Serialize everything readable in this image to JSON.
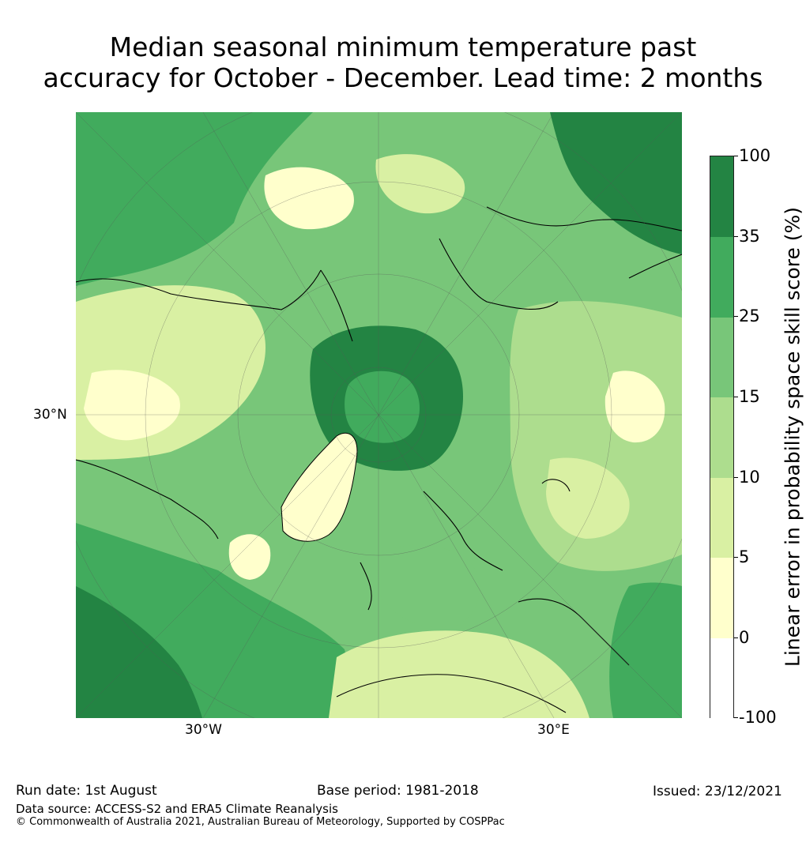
{
  "title": {
    "line1": "Median seasonal minimum temperature past",
    "line2": "accuracy for October - December. Lead time: 2 months"
  },
  "map": {
    "lat_labels": [
      "30°N"
    ],
    "lon_labels": [
      "30°W",
      "30°E"
    ],
    "palette": {
      "darkest": "#238443",
      "dark": "#41ab5d",
      "mid": "#78c679",
      "light": "#addd8e",
      "pale": "#d9f0a3",
      "cream": "#ffffcc",
      "white": "#ffffff",
      "coast": "#000000"
    }
  },
  "colorbar": {
    "label": "Linear error in probability space skill score (%)",
    "ticks": [
      "100",
      "35",
      "25",
      "15",
      "10",
      "5",
      "0",
      "-100"
    ],
    "colors": [
      "#238443",
      "#41ab5d",
      "#78c679",
      "#addd8e",
      "#d9f0a3",
      "#ffffcc",
      "#ffffff"
    ]
  },
  "footer": {
    "run_date": "Run date: 1st August",
    "base_period": "Base period: 1981-2018",
    "issued": "Issued: 23/12/2021",
    "data_source": "Data source: ACCESS-S2 and ERA5 Climate Reanalysis",
    "copyright": "© Commonwealth of Australia 2021, Australian Bureau of Meteorology, Supported by COSPPac"
  }
}
